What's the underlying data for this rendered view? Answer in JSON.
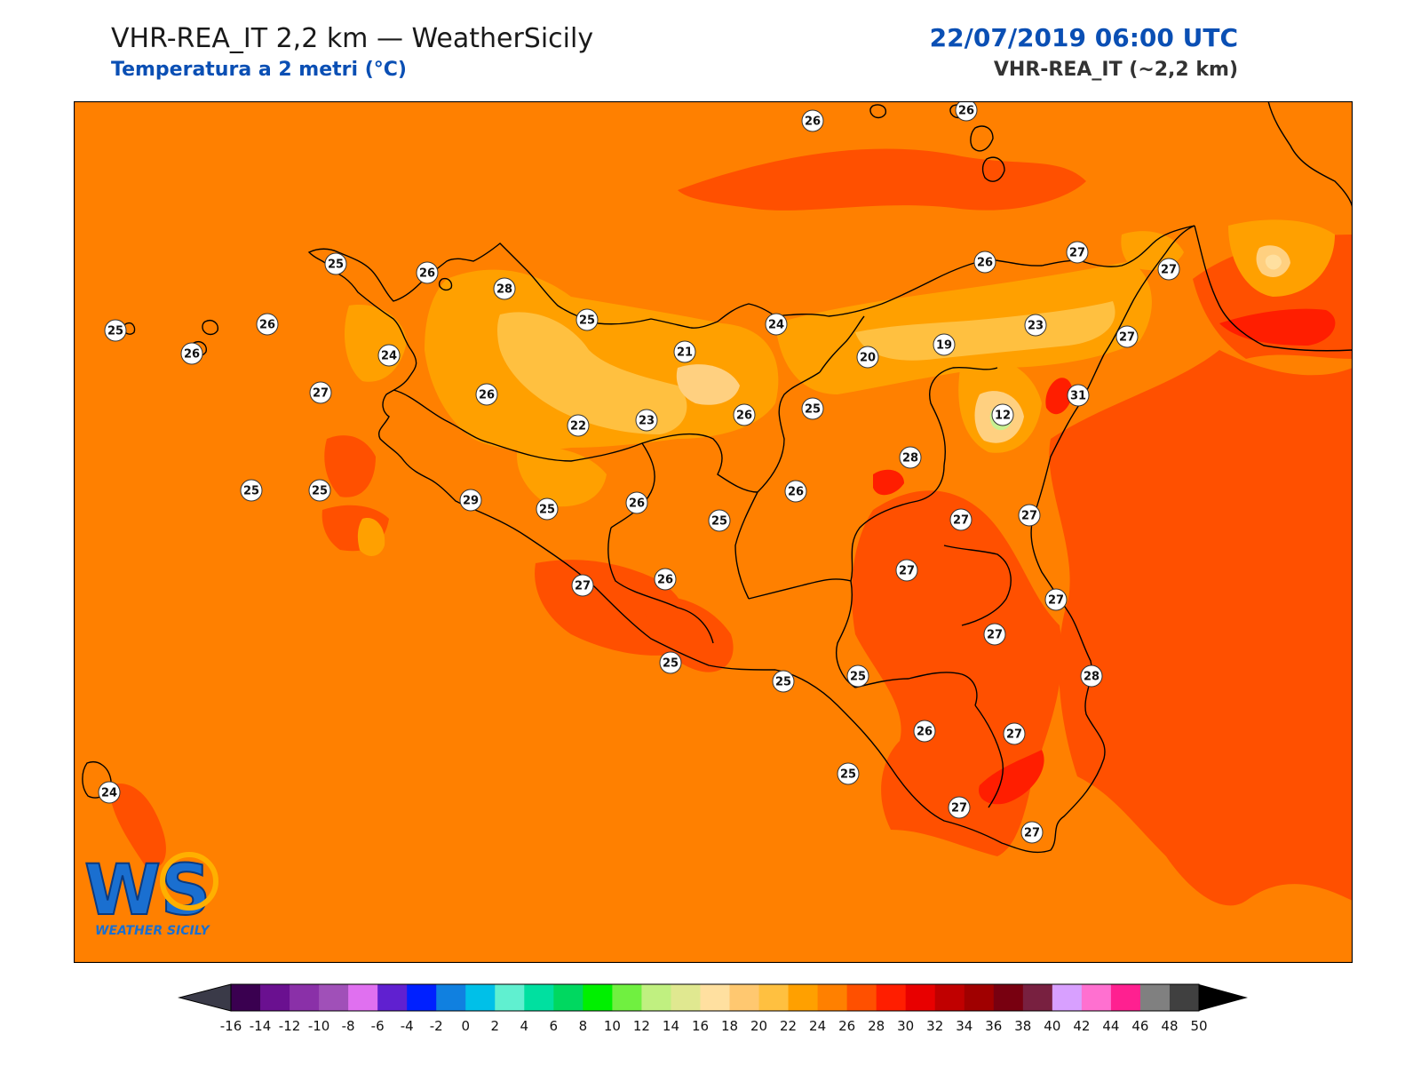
{
  "header": {
    "title_left": "VHR-REA_IT 2,2 km — WeatherSicily",
    "subtitle_left": "Temperatura a 2 metri (°C)",
    "title_right": "22/07/2019 06:00 UTC",
    "subtitle_right": "VHR-REA_IT (~2,2 km)"
  },
  "logo": {
    "letters": "WS",
    "caption": "WEATHER SICILY"
  },
  "colors": {
    "sea": "#ff8000",
    "land_base": "#ff8000",
    "warm_28": "#ff5000",
    "warm_30": "#ff1e00",
    "mild_24": "#ffa000",
    "mild_22": "#ffc040",
    "mild_20": "#ffd080",
    "cool_14": "#c8f090",
    "coast": "#000000"
  },
  "colorbar": {
    "ticks": [
      "-16",
      "-14",
      "-12",
      "-10",
      "-8",
      "-6",
      "-4",
      "-2",
      "0",
      "2",
      "4",
      "6",
      "8",
      "10",
      "12",
      "14",
      "16",
      "18",
      "20",
      "22",
      "24",
      "26",
      "28",
      "30",
      "32",
      "34",
      "36",
      "38",
      "40",
      "42",
      "44",
      "46",
      "48",
      "50"
    ],
    "colors": [
      "#3a0050",
      "#6a1090",
      "#8a30a8",
      "#a050b8",
      "#e070f0",
      "#6020d0",
      "#0020ff",
      "#1080e0",
      "#00c0e8",
      "#60f0d0",
      "#00e0a0",
      "#00d860",
      "#00f000",
      "#70f040",
      "#c0f080",
      "#e0e890",
      "#ffe0a0",
      "#ffc870",
      "#ffc040",
      "#ffa000",
      "#ff8000",
      "#ff5000",
      "#ff1e00",
      "#e80000",
      "#c00000",
      "#a00000",
      "#780010",
      "#782040",
      "#d8a0ff",
      "#ff70d0",
      "#ff2090",
      "#808080",
      "#404040"
    ]
  },
  "stations": [
    {
      "v": "26"
    },
    {
      "v": "26"
    },
    {
      "v": "25"
    },
    {
      "v": "26"
    },
    {
      "v": "28"
    },
    {
      "v": "25"
    },
    {
      "v": "25"
    },
    {
      "v": "26"
    },
    {
      "v": "24"
    },
    {
      "v": "27"
    },
    {
      "v": "26"
    },
    {
      "v": "25"
    },
    {
      "v": "25"
    },
    {
      "v": "24"
    },
    {
      "v": "21"
    },
    {
      "v": "26"
    },
    {
      "v": "22"
    },
    {
      "v": "23"
    },
    {
      "v": "26"
    },
    {
      "v": "25"
    },
    {
      "v": "20"
    },
    {
      "v": "19"
    },
    {
      "v": "23"
    },
    {
      "v": "26"
    },
    {
      "v": "27"
    },
    {
      "v": "27"
    },
    {
      "v": "27"
    },
    {
      "v": "31"
    },
    {
      "v": "12"
    },
    {
      "v": "28"
    },
    {
      "v": "29"
    },
    {
      "v": "25"
    },
    {
      "v": "26"
    },
    {
      "v": "25"
    },
    {
      "v": "26"
    },
    {
      "v": "27"
    },
    {
      "v": "27"
    },
    {
      "v": "27"
    },
    {
      "v": "27"
    },
    {
      "v": "26"
    },
    {
      "v": "27"
    },
    {
      "v": "27"
    },
    {
      "v": "25"
    },
    {
      "v": "25"
    },
    {
      "v": "25"
    },
    {
      "v": "28"
    },
    {
      "v": "26"
    },
    {
      "v": "27"
    },
    {
      "v": "25"
    },
    {
      "v": "27"
    },
    {
      "v": "27"
    },
    {
      "v": "24"
    }
  ]
}
